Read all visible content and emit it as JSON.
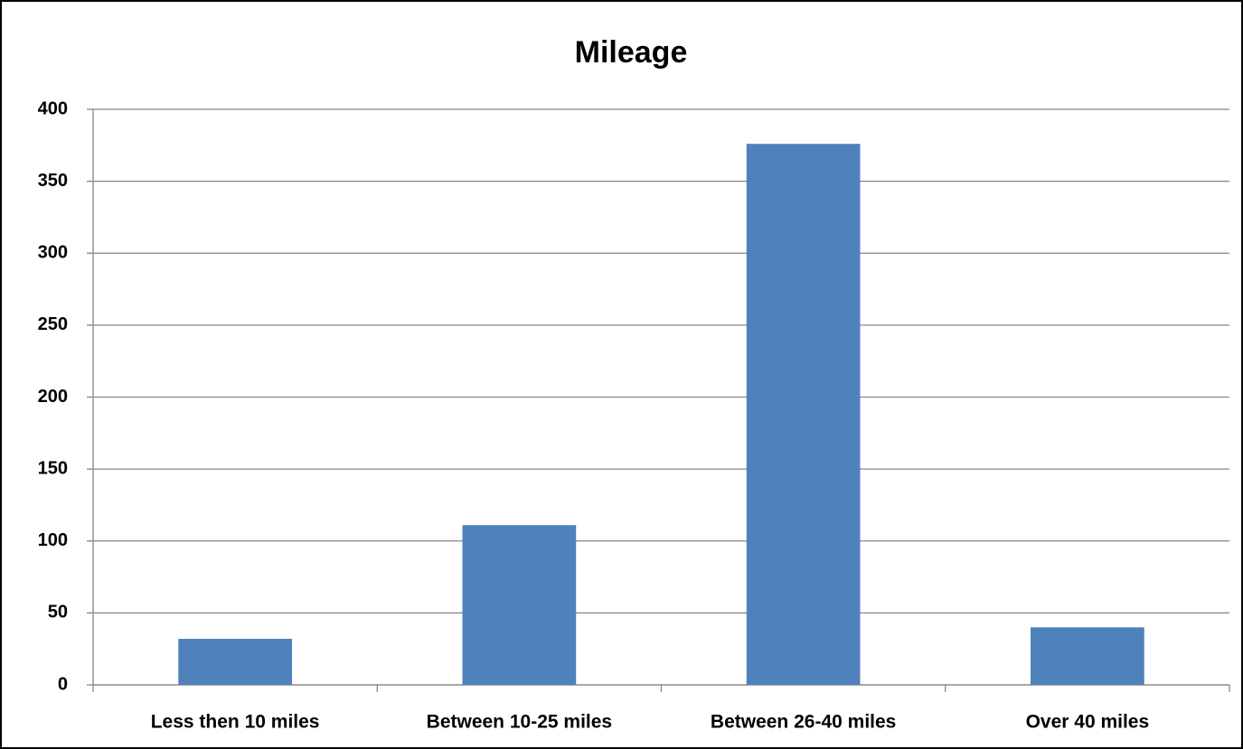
{
  "chart_data": {
    "type": "bar",
    "title": "Mileage",
    "categories": [
      "Less then 10 miles",
      "Between 10-25 miles",
      "Between 26-40 miles",
      "Over 40 miles"
    ],
    "values": [
      32,
      111,
      376,
      40
    ],
    "color": "#4f81bd",
    "ylim": [
      0,
      400
    ],
    "yticks": [
      0,
      50,
      100,
      150,
      200,
      250,
      300,
      350,
      400
    ],
    "grid": true
  }
}
